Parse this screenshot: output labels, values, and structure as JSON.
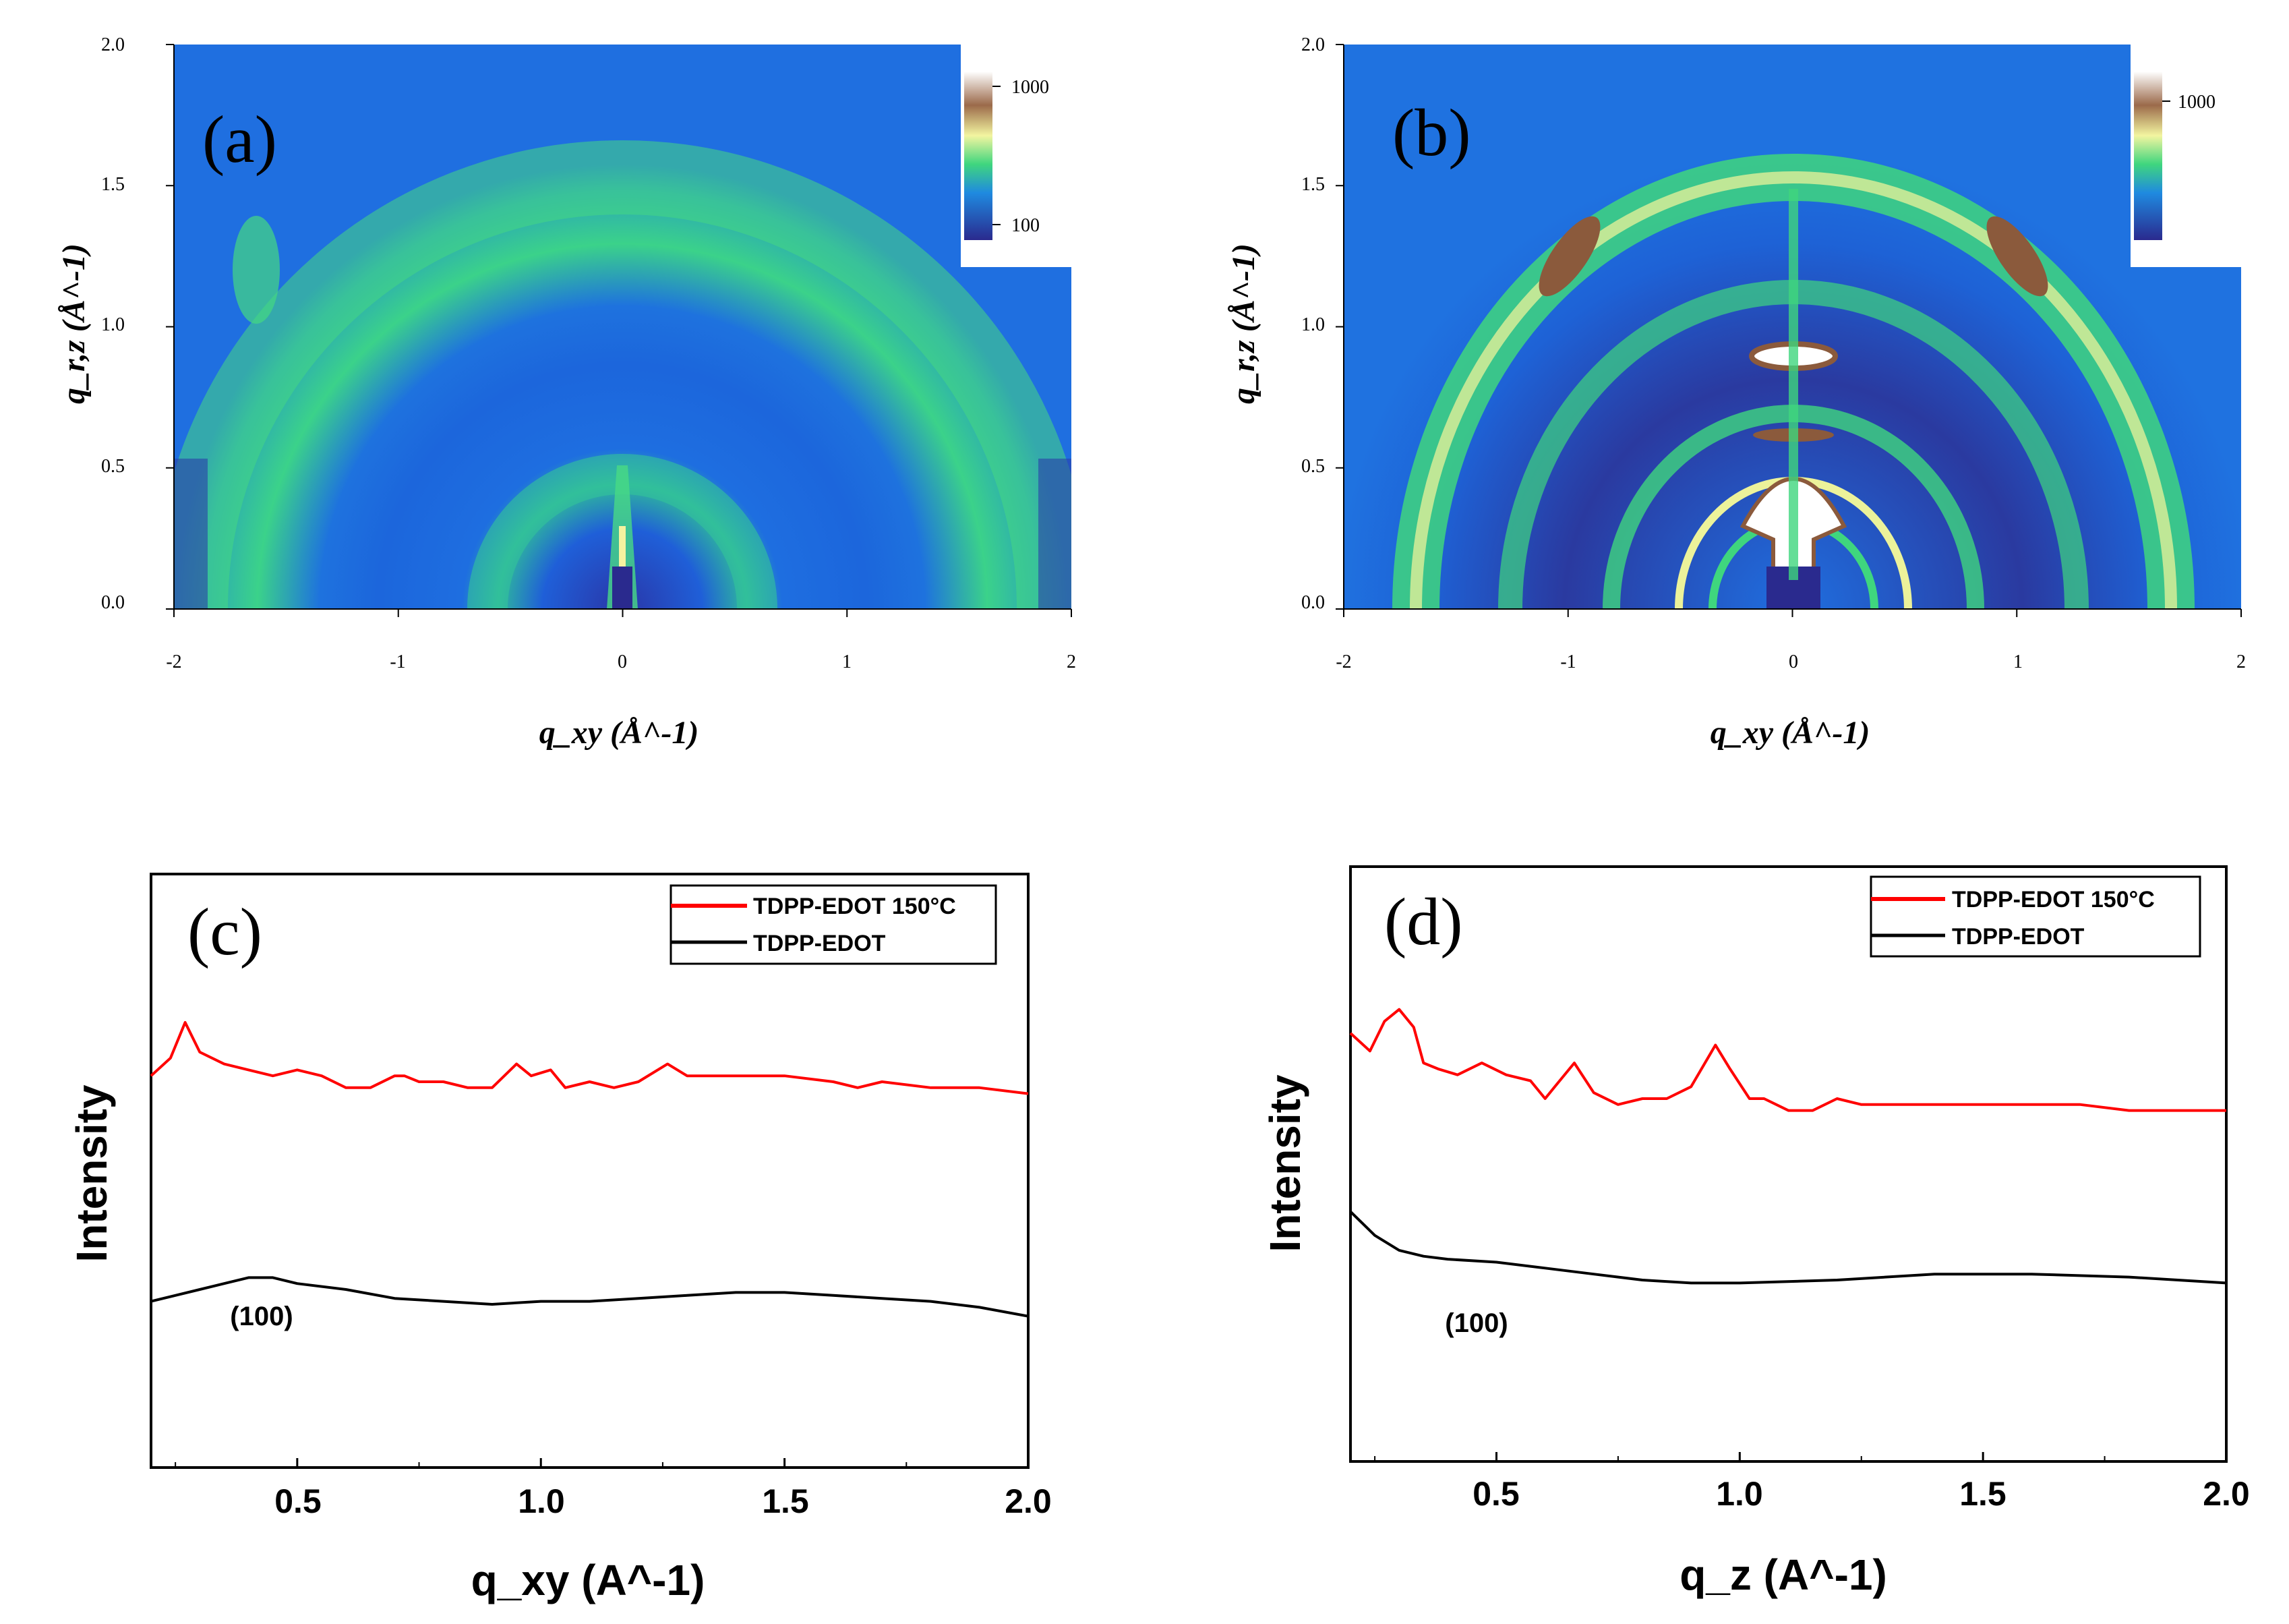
{
  "colors": {
    "heat_background": "#1f6fe0",
    "heat_deep": "#2a2f9a",
    "heat_green": "#3fd67e",
    "heat_yellow": "#ecf29a",
    "heat_hot": "#8b5a3c",
    "red_series": "#ff0000",
    "black_series": "#000000"
  },
  "chart_data": [
    {
      "panel": "(a)",
      "type": "heatmap",
      "title": "",
      "xlabel": "q_xy (Å^-1)",
      "ylabel": "q_r,z (Å^-1)",
      "x_ticks": [
        "-2",
        "-1",
        "0",
        "1",
        "2"
      ],
      "y_ticks": [
        "0.0",
        "0.5",
        "1.0",
        "1.5",
        "2.0"
      ],
      "xlim": [
        -2,
        2
      ],
      "ylim": [
        0,
        2
      ],
      "colorbar": {
        "scale": "log",
        "tick_labels": [
          "1000",
          "100"
        ]
      },
      "rings": [
        {
          "q": 0.55,
          "intensity": "moderate"
        },
        {
          "q": 1.55,
          "intensity": "moderate"
        }
      ]
    },
    {
      "panel": "(b)",
      "type": "heatmap",
      "title": "",
      "xlabel": "q_xy (Å^-1)",
      "ylabel": "q_r,z (Å^-1)",
      "x_ticks": [
        "-2",
        "-1",
        "0",
        "1",
        "2"
      ],
      "y_ticks": [
        "0.0",
        "0.5",
        "1.0",
        "1.5",
        "2.0"
      ],
      "xlim": [
        -2,
        2
      ],
      "ylim": [
        0,
        2
      ],
      "colorbar": {
        "scale": "log",
        "tick_labels": [
          "1000"
        ]
      },
      "rings": [
        {
          "q": 0.28,
          "intensity": "strong"
        },
        {
          "q": 0.55,
          "intensity": "strong"
        },
        {
          "q": 0.9,
          "intensity": "strong"
        },
        {
          "q": 1.65,
          "intensity": "strong"
        }
      ]
    },
    {
      "panel": "(c)",
      "type": "line",
      "title": "",
      "xlabel": "q_xy (A^-1)",
      "ylabel": "Intensity",
      "xlim": [
        0.2,
        2.0
      ],
      "ylim": [
        0,
        100
      ],
      "x_ticks": [
        "0.5",
        "1.0",
        "1.5",
        "2.0"
      ],
      "legend_position": "top-right",
      "annotation": {
        "text": "(100)",
        "x": 0.45,
        "y": 38
      },
      "series": [
        {
          "name": "TDPP-EDOT 150°C",
          "color": "#ff0000",
          "x": [
            0.2,
            0.24,
            0.27,
            0.3,
            0.35,
            0.4,
            0.45,
            0.5,
            0.55,
            0.6,
            0.65,
            0.7,
            0.72,
            0.75,
            0.8,
            0.85,
            0.9,
            0.95,
            0.98,
            1.02,
            1.05,
            1.1,
            1.15,
            1.2,
            1.26,
            1.3,
            1.4,
            1.5,
            1.6,
            1.65,
            1.7,
            1.8,
            1.9,
            2.0
          ],
          "y": [
            66,
            69,
            75,
            70,
            68,
            67,
            66,
            67,
            66,
            64,
            64,
            66,
            66,
            65,
            65,
            64,
            64,
            68,
            66,
            67,
            64,
            65,
            64,
            65,
            68,
            66,
            66,
            66,
            65,
            64,
            65,
            64,
            64,
            63
          ]
        },
        {
          "name": "TDPP-EDOT",
          "color": "#000000",
          "x": [
            0.2,
            0.25,
            0.3,
            0.35,
            0.4,
            0.45,
            0.5,
            0.6,
            0.7,
            0.8,
            0.9,
            1.0,
            1.1,
            1.2,
            1.3,
            1.4,
            1.5,
            1.6,
            1.7,
            1.8,
            1.9,
            2.0
          ],
          "y": [
            28,
            29,
            30,
            31,
            32,
            32,
            31,
            30,
            28.5,
            28,
            27.5,
            28,
            28,
            28.5,
            29,
            29.5,
            29.5,
            29,
            28.5,
            28,
            27,
            25.5
          ]
        }
      ]
    },
    {
      "panel": "(d)",
      "type": "line",
      "title": "",
      "xlabel": "q_z (A^-1)",
      "ylabel": "Intensity",
      "xlim": [
        0.2,
        2.0
      ],
      "ylim": [
        0,
        100
      ],
      "x_ticks": [
        "0.5",
        "1.0",
        "1.5",
        "2.0"
      ],
      "legend_position": "top-right",
      "annotation": {
        "text": "(100)",
        "x": 0.45,
        "y": 38
      },
      "series": [
        {
          "name": "TDPP-EDOT 150°C",
          "color": "#ff0000",
          "x": [
            0.2,
            0.24,
            0.27,
            0.3,
            0.33,
            0.35,
            0.38,
            0.42,
            0.47,
            0.52,
            0.57,
            0.6,
            0.62,
            0.66,
            0.7,
            0.75,
            0.8,
            0.85,
            0.9,
            0.95,
            0.98,
            1.02,
            1.05,
            1.1,
            1.15,
            1.2,
            1.25,
            1.3,
            1.4,
            1.5,
            1.6,
            1.7,
            1.8,
            1.9,
            2.0
          ],
          "y": [
            72,
            69,
            74,
            76,
            73,
            67,
            66,
            65,
            67,
            65,
            64,
            61,
            63,
            67,
            62,
            60,
            61,
            61,
            63,
            70,
            66,
            61,
            61,
            59,
            59,
            61,
            60,
            60,
            60,
            60,
            60,
            60,
            59,
            59,
            59
          ]
        },
        {
          "name": "TDPP-EDOT",
          "color": "#000000",
          "x": [
            0.2,
            0.25,
            0.3,
            0.35,
            0.4,
            0.5,
            0.6,
            0.7,
            0.8,
            0.9,
            1.0,
            1.2,
            1.4,
            1.6,
            1.8,
            2.0
          ],
          "y": [
            42,
            38,
            35.5,
            34.5,
            34,
            33.5,
            32.5,
            31.5,
            30.5,
            30,
            30,
            30.5,
            31.5,
            31.5,
            31,
            30
          ]
        }
      ]
    }
  ]
}
